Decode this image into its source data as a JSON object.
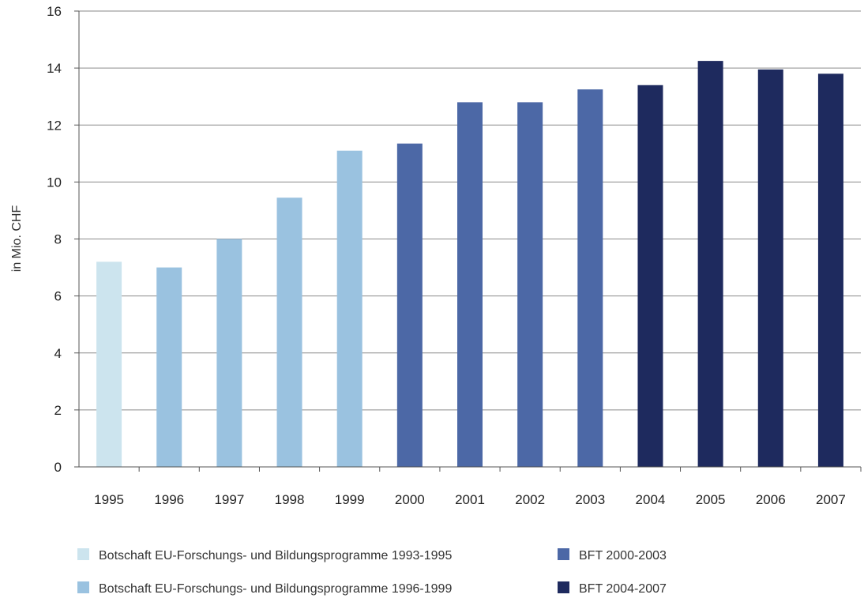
{
  "chart_data": {
    "type": "bar",
    "categories": [
      "1995",
      "1996",
      "1997",
      "1998",
      "1999",
      "2000",
      "2001",
      "2002",
      "2003",
      "2004",
      "2005",
      "2006",
      "2007"
    ],
    "values": [
      7.2,
      7.0,
      8.0,
      9.45,
      11.1,
      11.35,
      12.8,
      12.8,
      13.25,
      13.4,
      14.25,
      13.95,
      13.8
    ],
    "groups": [
      0,
      1,
      1,
      1,
      1,
      2,
      2,
      2,
      2,
      3,
      3,
      3,
      3
    ],
    "ylabel": "in Mio. CHF",
    "ylim": [
      0,
      16
    ],
    "yticks": [
      0,
      2,
      4,
      6,
      8,
      10,
      12,
      14,
      16
    ],
    "grid": true,
    "legend_position": "bottom",
    "legend": [
      {
        "label": "Botschaft EU-Forschungs- und Bildungsprogramme 1993-1995",
        "color": "#cce4ee"
      },
      {
        "label": "Botschaft EU-Forschungs- und Bildungsprogramme 1996-1999",
        "color": "#9ac2e0"
      },
      {
        "label": "BFT 2000-2003",
        "color": "#4c68a6"
      },
      {
        "label": "BFT 2004-2007",
        "color": "#1e2a5e"
      }
    ]
  }
}
